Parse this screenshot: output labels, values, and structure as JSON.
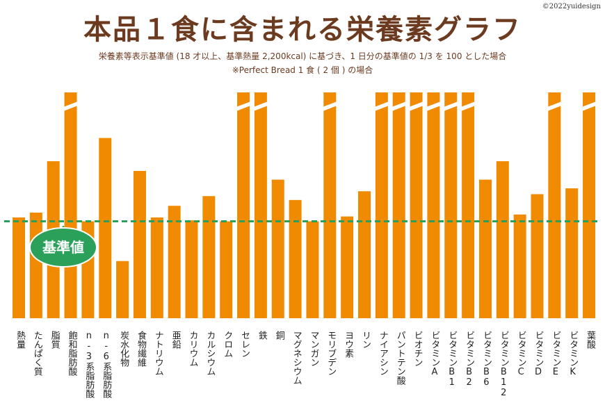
{
  "title": "本品１食に含まれる栄養素グラフ",
  "copyright": "©2022yuidesign",
  "subtitle_line1": "栄養素等表示基準値 (18 才以上、基準熱量 2,200kcal) に基づき、1 日分の基準値の 1/3 を 100 とした場合",
  "subtitle_line2": "※Perfect Bread  1 食 ( 2 個 ) の場合",
  "colors": {
    "bar": "#f08a00",
    "reference_line": "#2aa05a",
    "callout": "#2aa05a",
    "title": "#6b3a1f"
  },
  "chart_data": {
    "type": "bar",
    "title": "本品１食に含まれる栄養素グラフ",
    "xlabel": "",
    "ylabel": "",
    "reference_value": 100,
    "reference_label": "基準値",
    "ylim": [
      0,
      233
    ],
    "grid": false,
    "categories": [
      "熱量",
      "たんぱく質",
      "脂質",
      "飽和脂肪酸",
      "n-3系脂肪酸",
      "n-6系脂肪酸",
      "炭水化物",
      "食物繊維",
      "ナトリウム",
      "亜鉛",
      "カリウム",
      "カルシウム",
      "クロム",
      "セレン",
      "鉄",
      "銅",
      "マグネシウム",
      "マンガン",
      "モリブデン",
      "ヨウ素",
      "リン",
      "ナイアシン",
      "パントテン酸",
      "ビオチン",
      "ビタミンA",
      "ビタミンB1",
      "ビタミンB2",
      "ビタミンB6",
      "ビタミンB12",
      "ビタミンC",
      "ビタミンD",
      "ビタミンE",
      "ビタミンK",
      "葉酸"
    ],
    "values": [
      104,
      109,
      162,
      233,
      100,
      186,
      59,
      152,
      104,
      116,
      101,
      126,
      100,
      233,
      233,
      143,
      122,
      100,
      233,
      105,
      131,
      233,
      233,
      233,
      233,
      233,
      233,
      143,
      162,
      107,
      128,
      233,
      134,
      233
    ],
    "truncated": [
      false,
      false,
      false,
      true,
      false,
      false,
      false,
      false,
      false,
      false,
      false,
      false,
      false,
      true,
      true,
      false,
      false,
      false,
      true,
      false,
      false,
      true,
      true,
      true,
      true,
      true,
      true,
      false,
      false,
      false,
      false,
      true,
      false,
      true
    ]
  }
}
